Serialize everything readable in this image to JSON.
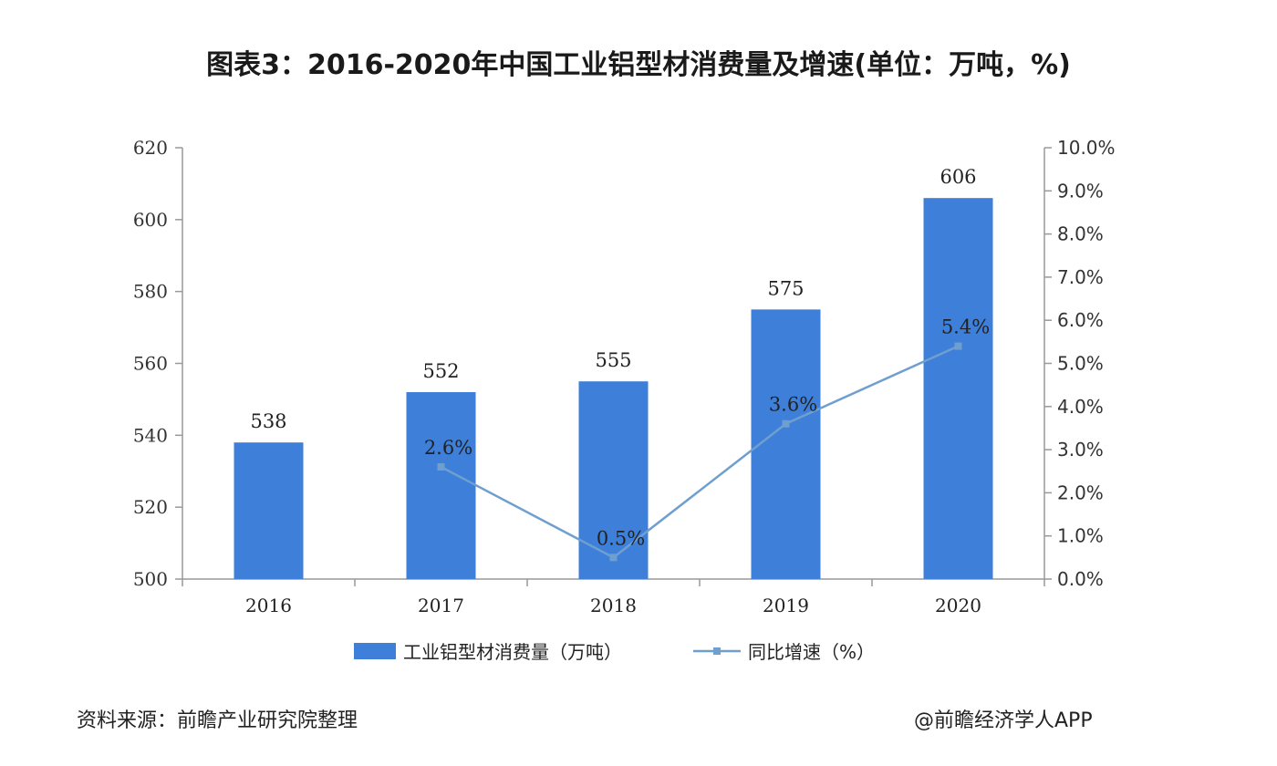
{
  "title": "图表3：2016-2020年中国工业铝型材消费量及增速(单位：万吨，%)",
  "source": "资料来源：前瞻产业研究院整理",
  "credit": "@前瞻经济学人APP",
  "colors": {
    "bar": "#3d7fd9",
    "line": "#6f9fcf",
    "axis": "#999999"
  },
  "chart_data": {
    "type": "bar",
    "categories": [
      "2016",
      "2017",
      "2018",
      "2019",
      "2020"
    ],
    "series": [
      {
        "name": "工业铝型材消费量（万吨）",
        "type": "bar",
        "axis": "left",
        "values": [
          538,
          552,
          555,
          575,
          606
        ],
        "labels": [
          "538",
          "552",
          "555",
          "575",
          "606"
        ]
      },
      {
        "name": "同比增速（%）",
        "type": "line",
        "axis": "right",
        "values": [
          null,
          2.6,
          0.5,
          3.6,
          5.4
        ],
        "labels": [
          "",
          "2.6%",
          "0.5%",
          "3.6%",
          "5.4%"
        ]
      }
    ],
    "y_left": {
      "min": 500,
      "max": 620,
      "ticks": [
        "500",
        "520",
        "540",
        "560",
        "580",
        "600",
        "620"
      ]
    },
    "y_right": {
      "min": 0,
      "max": 10,
      "ticks": [
        "0.0%",
        "1.0%",
        "2.0%",
        "3.0%",
        "4.0%",
        "5.0%",
        "6.0%",
        "7.0%",
        "8.0%",
        "9.0%",
        "10.0%"
      ]
    },
    "legend": [
      "工业铝型材消费量（万吨）",
      "同比增速（%）"
    ],
    "legend_position": "bottom",
    "grid": false
  }
}
